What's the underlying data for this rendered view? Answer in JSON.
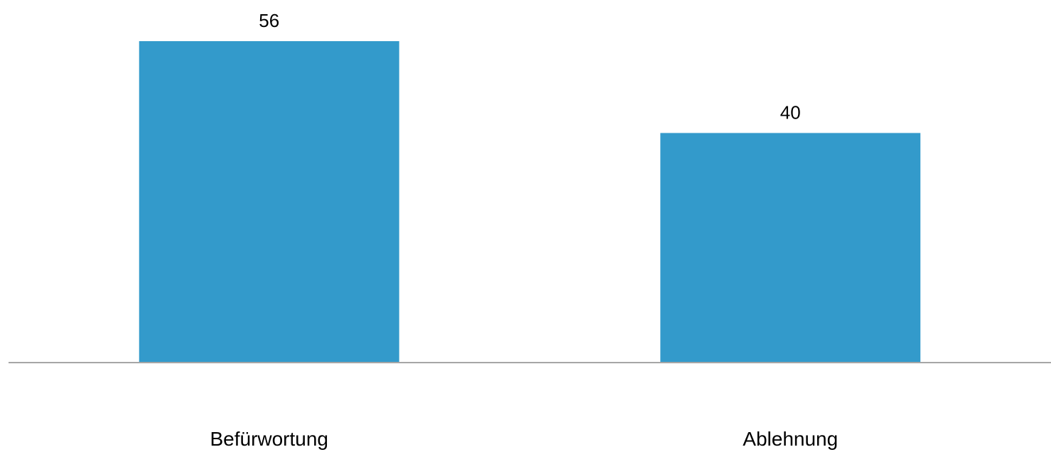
{
  "chart_data": {
    "type": "bar",
    "categories": [
      "Befürwortung",
      "Ablehnung"
    ],
    "values": [
      56,
      40
    ],
    "ylim": [
      0,
      60
    ],
    "grid": false,
    "legend": "none",
    "colors": {
      "bar": "#339ACB",
      "axis": "#A6A6A6",
      "text": "#000000"
    }
  }
}
